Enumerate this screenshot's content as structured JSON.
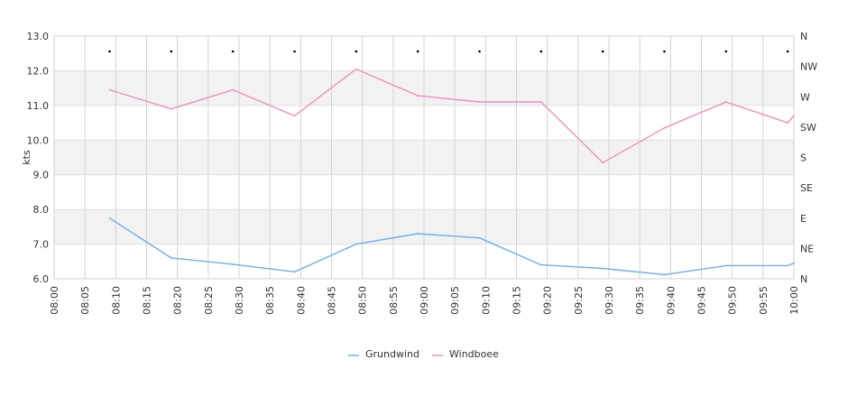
{
  "chart_data": {
    "type": "line",
    "ylabel": "kts",
    "ylim": [
      6.0,
      13.0
    ],
    "y_ticks": [
      "6.0",
      "7.0",
      "8.0",
      "9.0",
      "10.0",
      "11.0",
      "12.0",
      "13.0"
    ],
    "x_ticks": [
      "08:00",
      "08:05",
      "08:10",
      "08:15",
      "08:20",
      "08:25",
      "08:30",
      "08:35",
      "08:40",
      "08:45",
      "08:50",
      "08:55",
      "09:00",
      "09:05",
      "09:10",
      "09:15",
      "09:20",
      "09:25",
      "09:30",
      "09:35",
      "09:40",
      "09:45",
      "09:50",
      "09:55",
      "10:00"
    ],
    "xlim_minutes": [
      0,
      120
    ],
    "direction_ticks": [
      "N",
      "NE",
      "E",
      "SE",
      "S",
      "SW",
      "W",
      "NW",
      "N"
    ],
    "direction_points": [
      {
        "x": "08:09",
        "dir": "N"
      },
      {
        "x": "08:19",
        "dir": "N"
      },
      {
        "x": "08:29",
        "dir": "N"
      },
      {
        "x": "08:39",
        "dir": "N"
      },
      {
        "x": "08:49",
        "dir": "N"
      },
      {
        "x": "08:59",
        "dir": "N"
      },
      {
        "x": "09:09",
        "dir": "N"
      },
      {
        "x": "09:19",
        "dir": "N"
      },
      {
        "x": "09:29",
        "dir": "N"
      },
      {
        "x": "09:39",
        "dir": "N"
      },
      {
        "x": "09:49",
        "dir": "N"
      },
      {
        "x": "09:59",
        "dir": "N"
      }
    ],
    "grid": true,
    "legend_position": "bottom-center",
    "series": [
      {
        "name": "Grundwind",
        "color": "#6aaff0",
        "x": [
          "08:09",
          "08:19",
          "08:29",
          "08:39",
          "08:49",
          "08:59",
          "09:09",
          "09:19",
          "09:29",
          "09:39",
          "09:49",
          "09:59",
          "10:00"
        ],
        "values": [
          7.75,
          6.6,
          6.42,
          6.2,
          7.0,
          7.3,
          7.18,
          6.4,
          6.3,
          6.12,
          6.38,
          6.38,
          6.45
        ]
      },
      {
        "name": "Windboee",
        "color": "#f08cbe",
        "x": [
          "08:09",
          "08:19",
          "08:29",
          "08:39",
          "08:49",
          "08:59",
          "09:09",
          "09:19",
          "09:29",
          "09:39",
          "09:49",
          "09:59",
          "10:00"
        ],
        "values": [
          11.45,
          10.9,
          11.45,
          10.7,
          12.05,
          11.28,
          11.1,
          11.1,
          9.35,
          10.35,
          11.1,
          10.5,
          10.7
        ]
      }
    ]
  }
}
